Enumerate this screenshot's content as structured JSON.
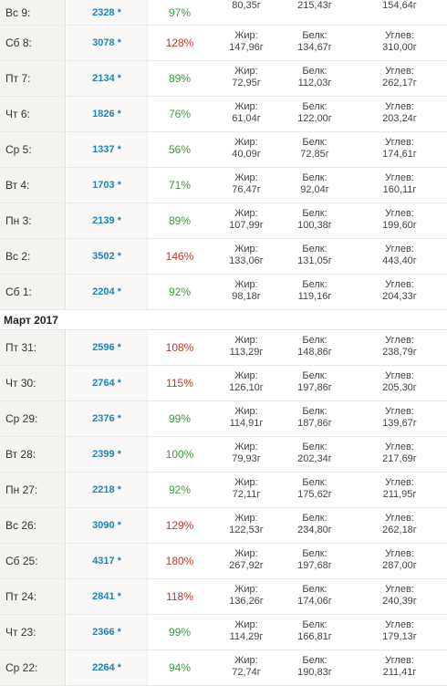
{
  "month_header": "Март 2017",
  "fat_label": "Жир:",
  "protein_label": "Белк:",
  "carbs_label": "Углев:",
  "rows_before": [
    {
      "day": "Вс 9:",
      "kcal": "2328 *",
      "pct": "97%",
      "status": "ok",
      "fat": "80,35г",
      "protein": "215,43г",
      "carbs": "154,64г"
    },
    {
      "day": "Сб 8:",
      "kcal": "3078 *",
      "pct": "128%",
      "status": "over",
      "fat": "147,96г",
      "protein": "134,67г",
      "carbs": "310,00г"
    },
    {
      "day": "Пт 7:",
      "kcal": "2134 *",
      "pct": "89%",
      "status": "ok",
      "fat": "72,95г",
      "protein": "112,03г",
      "carbs": "262,17г"
    },
    {
      "day": "Чт 6:",
      "kcal": "1826 *",
      "pct": "76%",
      "status": "ok",
      "fat": "61,04г",
      "protein": "122,00г",
      "carbs": "203,24г"
    },
    {
      "day": "Ср 5:",
      "kcal": "1337 *",
      "pct": "56%",
      "status": "ok",
      "fat": "40,09г",
      "protein": "72,85г",
      "carbs": "174,61г"
    },
    {
      "day": "Вт 4:",
      "kcal": "1703 *",
      "pct": "71%",
      "status": "ok",
      "fat": "76,47г",
      "protein": "92,04г",
      "carbs": "160,11г"
    },
    {
      "day": "Пн 3:",
      "kcal": "2139 *",
      "pct": "89%",
      "status": "ok",
      "fat": "107,99г",
      "protein": "100,38г",
      "carbs": "199,60г"
    },
    {
      "day": "Вс 2:",
      "kcal": "3502 *",
      "pct": "146%",
      "status": "over",
      "fat": "133,06г",
      "protein": "131,05г",
      "carbs": "443,40г"
    },
    {
      "day": "Сб 1:",
      "kcal": "2204 *",
      "pct": "92%",
      "status": "ok",
      "fat": "98,18г",
      "protein": "119,16г",
      "carbs": "204,33г"
    }
  ],
  "rows_after": [
    {
      "day": "Пт 31:",
      "kcal": "2596 *",
      "pct": "108%",
      "status": "over",
      "fat": "113,29г",
      "protein": "148,86г",
      "carbs": "238,79г"
    },
    {
      "day": "Чт 30:",
      "kcal": "2764 *",
      "pct": "115%",
      "status": "over",
      "fat": "126,10г",
      "protein": "197,86г",
      "carbs": "205,30г"
    },
    {
      "day": "Ср 29:",
      "kcal": "2376 *",
      "pct": "99%",
      "status": "ok",
      "fat": "114,91г",
      "protein": "187,86г",
      "carbs": "139,67г"
    },
    {
      "day": "Вт 28:",
      "kcal": "2399 *",
      "pct": "100%",
      "status": "ok",
      "fat": "79,93г",
      "protein": "202,34г",
      "carbs": "217,69г"
    },
    {
      "day": "Пн 27:",
      "kcal": "2218 *",
      "pct": "92%",
      "status": "ok",
      "fat": "72,11г",
      "protein": "175,62г",
      "carbs": "211,95г"
    },
    {
      "day": "Вс 26:",
      "kcal": "3090 *",
      "pct": "129%",
      "status": "over",
      "fat": "122,53г",
      "protein": "234,80г",
      "carbs": "262,18г"
    },
    {
      "day": "Сб 25:",
      "kcal": "4317 *",
      "pct": "180%",
      "status": "over",
      "fat": "267,92г",
      "protein": "197,68г",
      "carbs": "287,00г"
    },
    {
      "day": "Пт 24:",
      "kcal": "2841 *",
      "pct": "118%",
      "status": "over",
      "fat": "136,26г",
      "protein": "174,06г",
      "carbs": "240,39г"
    },
    {
      "day": "Чт 23:",
      "kcal": "2366 *",
      "pct": "99%",
      "status": "ok",
      "fat": "114,29г",
      "protein": "166,81г",
      "carbs": "179,13г"
    },
    {
      "day": "Ср 22:",
      "kcal": "2264 *",
      "pct": "94%",
      "status": "ok",
      "fat": "72,74г",
      "protein": "190,83г",
      "carbs": "211,41г"
    }
  ]
}
